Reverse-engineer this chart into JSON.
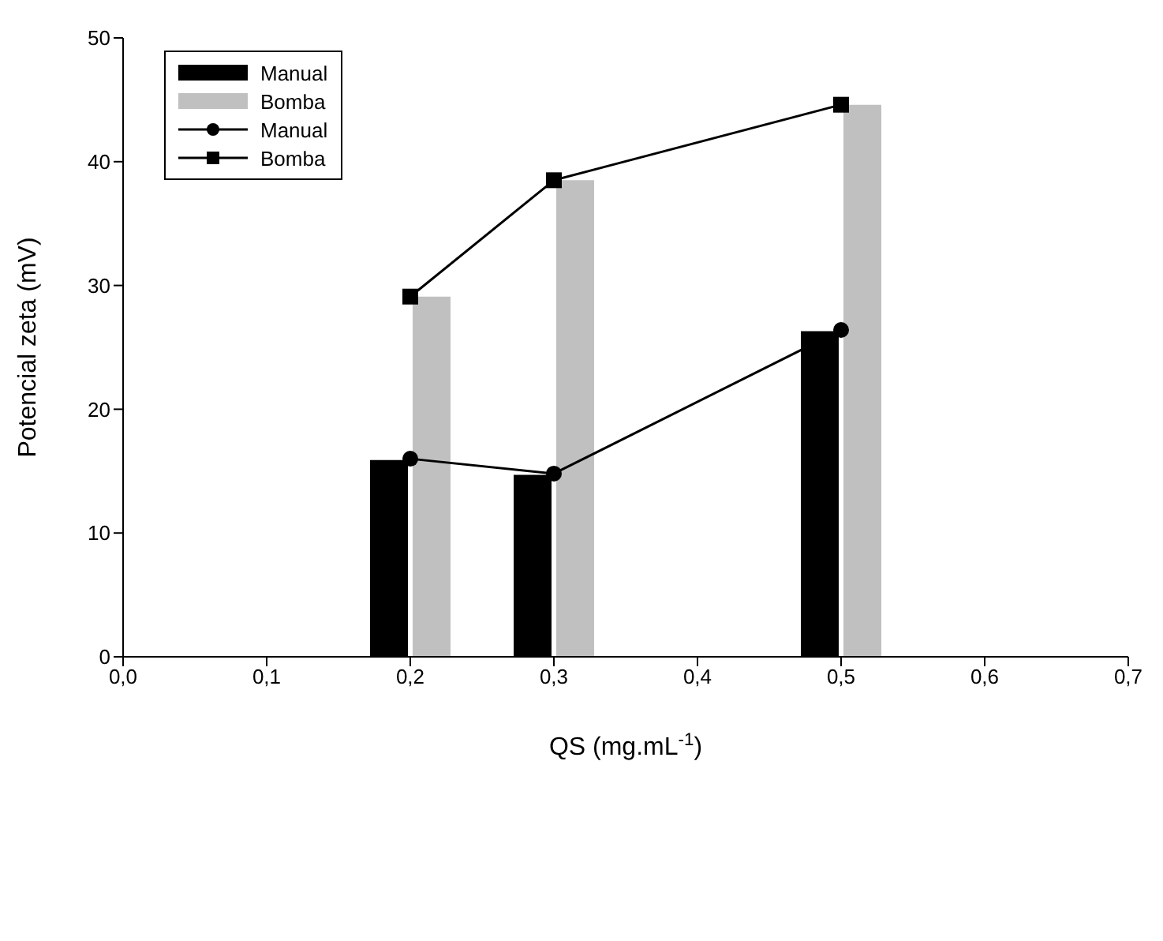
{
  "chart_data": {
    "type": "bar",
    "xlabel": "QS (mg.mL$^{-1}$)",
    "ylabel": "Potencial zeta (mV)",
    "x": [
      0.2,
      0.3,
      0.5
    ],
    "series": [
      {
        "name": "Manual",
        "color": "#000000",
        "values": [
          15.9,
          14.7,
          26.3
        ]
      },
      {
        "name": "Bomba",
        "color": "#c0c0c0",
        "values": [
          29.1,
          38.5,
          44.6
        ]
      },
      {
        "name": "Manual",
        "type": "line",
        "color": "#000000",
        "marker": "circle",
        "values": [
          16.0,
          14.8,
          26.4
        ]
      },
      {
        "name": "Bomba",
        "type": "line",
        "color": "#000000",
        "marker": "square",
        "values": [
          29.1,
          38.5,
          44.6
        ]
      }
    ],
    "xlim": [
      0,
      0.7
    ],
    "xticks": [
      {
        "value": 0,
        "label": "0,0"
      },
      {
        "value": 0.1,
        "label": "0,1"
      },
      {
        "value": 0.2,
        "label": "0,2"
      },
      {
        "value": 0.3,
        "label": "0,3"
      },
      {
        "value": 0.4,
        "label": "0,4"
      },
      {
        "value": 0.5,
        "label": "0,5"
      },
      {
        "value": 0.6,
        "label": "0,6"
      },
      {
        "value": 0.7,
        "label": "0,7"
      }
    ],
    "ylim": [
      0,
      50
    ],
    "yticks": [
      0,
      10,
      20,
      30,
      40,
      50
    ],
    "grid": false,
    "legend": "top left"
  }
}
